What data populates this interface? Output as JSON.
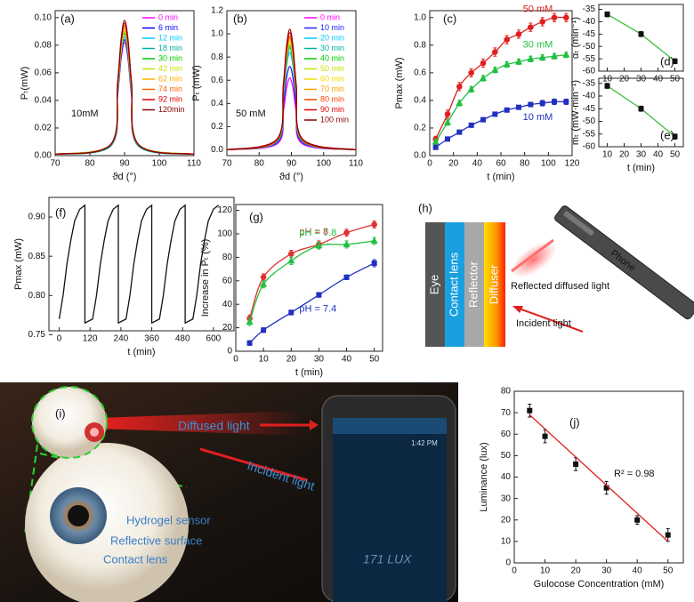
{
  "chart_data": [
    {
      "type": "line",
      "label": "(a)",
      "xlabel": "ϑd (°)",
      "ylabel": "Pₜ(mW)",
      "annotation": "10mM",
      "legend": "upper right",
      "smooth": true,
      "xlim": [
        70,
        110
      ],
      "xticks": [
        70,
        80,
        90,
        100,
        110
      ],
      "ylim": [
        0,
        0.105
      ],
      "yticks": [
        {
          "value": 0,
          "label": "0.00"
        },
        0.02,
        0.04,
        0.06,
        0.08,
        {
          "value": 0.1,
          "label": "0.10"
        }
      ],
      "x": [
        70,
        86,
        88,
        89,
        90,
        91,
        92,
        94,
        110
      ],
      "series": [
        {
          "name": "0 min",
          "color": "#ff00ff",
          "values": [
            0.001,
            0.007,
            0.044,
            0.07,
            0.082,
            0.07,
            0.044,
            0.007,
            0.001
          ]
        },
        {
          "name": "6 min",
          "color": "#0000ff",
          "values": [
            0.001,
            0.007,
            0.045,
            0.072,
            0.084,
            0.072,
            0.045,
            0.007,
            0.001
          ]
        },
        {
          "name": "12 min",
          "color": "#00c8ff",
          "values": [
            0.001,
            0.007,
            0.046,
            0.074,
            0.086,
            0.074,
            0.046,
            0.007,
            0.001
          ]
        },
        {
          "name": "18 min",
          "color": "#00b0a0",
          "values": [
            0.001,
            0.007,
            0.047,
            0.075,
            0.088,
            0.075,
            0.047,
            0.007,
            0.001
          ]
        },
        {
          "name": "30 min",
          "color": "#00cc00",
          "values": [
            0.001,
            0.008,
            0.048,
            0.076,
            0.089,
            0.076,
            0.048,
            0.008,
            0.001
          ]
        },
        {
          "name": "42 min",
          "color": "#c8e000",
          "values": [
            0.001,
            0.008,
            0.049,
            0.077,
            0.09,
            0.077,
            0.049,
            0.008,
            0.001
          ]
        },
        {
          "name": "62 min",
          "color": "#ffb000",
          "values": [
            0.001,
            0.008,
            0.05,
            0.079,
            0.092,
            0.079,
            0.05,
            0.008,
            0.001
          ]
        },
        {
          "name": "74 min",
          "color": "#ff6000",
          "values": [
            0.001,
            0.008,
            0.051,
            0.081,
            0.094,
            0.081,
            0.051,
            0.008,
            0.001
          ]
        },
        {
          "name": "92 min",
          "color": "#e00000",
          "values": [
            0.001,
            0.008,
            0.052,
            0.082,
            0.096,
            0.082,
            0.052,
            0.008,
            0.001
          ]
        },
        {
          "name": "120min",
          "color": "#8b0000",
          "values": [
            0.001,
            0.008,
            0.053,
            0.084,
            0.098,
            0.084,
            0.053,
            0.008,
            0.001
          ]
        }
      ]
    },
    {
      "type": "line",
      "label": "(b)",
      "xlabel": "ϑd (°)",
      "ylabel": "Pₜ (mW)",
      "annotation": "50 mM",
      "legend": "upper right",
      "smooth": true,
      "xlim": [
        70,
        110
      ],
      "xticks": [
        70,
        80,
        90,
        100,
        110
      ],
      "ylim": [
        -0.05,
        1.2
      ],
      "yticks": [
        {
          "value": 0,
          "label": "0.0"
        },
        0.2,
        0.4,
        0.6,
        0.8,
        {
          "value": 1,
          "label": "1.0"
        },
        1.2
      ],
      "x": [
        70,
        85.5,
        87.5,
        88.5,
        89.5,
        90.5,
        91.5,
        93.5,
        110
      ],
      "series": [
        {
          "name": "0 min",
          "color": "#ff00ff",
          "values": [
            0,
            0.05,
            0.33,
            0.53,
            0.62,
            0.53,
            0.33,
            0.05,
            0
          ]
        },
        {
          "name": "10 min",
          "color": "#2020ff",
          "values": [
            0,
            0.06,
            0.39,
            0.62,
            0.72,
            0.62,
            0.39,
            0.06,
            0
          ]
        },
        {
          "name": "20 min",
          "color": "#00c8ff",
          "values": [
            0,
            0.07,
            0.45,
            0.72,
            0.84,
            0.72,
            0.45,
            0.07,
            0
          ]
        },
        {
          "name": "30 min",
          "color": "#00b0a0",
          "values": [
            0,
            0.07,
            0.47,
            0.75,
            0.88,
            0.75,
            0.47,
            0.07,
            0
          ]
        },
        {
          "name": "40 min",
          "color": "#00cc00",
          "values": [
            0,
            0.08,
            0.49,
            0.77,
            0.9,
            0.77,
            0.49,
            0.08,
            0
          ]
        },
        {
          "name": "50 min",
          "color": "#c8e000",
          "values": [
            0,
            0.08,
            0.5,
            0.79,
            0.92,
            0.79,
            0.5,
            0.08,
            0
          ]
        },
        {
          "name": "60 min",
          "color": "#f0e000",
          "values": [
            0,
            0.08,
            0.51,
            0.81,
            0.94,
            0.81,
            0.51,
            0.08,
            0
          ]
        },
        {
          "name": "70 min",
          "color": "#ffa000",
          "values": [
            0,
            0.08,
            0.52,
            0.82,
            0.96,
            0.82,
            0.52,
            0.08,
            0
          ]
        },
        {
          "name": "80 min",
          "color": "#ff4000",
          "values": [
            0,
            0.08,
            0.53,
            0.84,
            0.98,
            0.84,
            0.53,
            0.08,
            0
          ]
        },
        {
          "name": "90 min",
          "color": "#e00000",
          "values": [
            0,
            0.09,
            0.54,
            0.87,
            1.01,
            0.87,
            0.54,
            0.09,
            0
          ]
        },
        {
          "name": "100 min",
          "color": "#8b0000",
          "values": [
            0,
            0.09,
            0.56,
            0.89,
            1.04,
            0.89,
            0.56,
            0.09,
            0
          ]
        }
      ]
    },
    {
      "type": "line",
      "label": "(c)",
      "xlabel": "t (min)",
      "ylabel": "Pmax (mW)",
      "legend": "inline",
      "smooth": true,
      "xlim": [
        0,
        120
      ],
      "xticks": [
        0,
        20,
        40,
        60,
        80,
        100,
        120
      ],
      "ylim": [
        0,
        1.05
      ],
      "yticks": [
        {
          "value": 0,
          "label": "0.0"
        },
        0.2,
        0.4,
        0.6,
        0.8,
        {
          "value": 1,
          "label": "1.0"
        }
      ],
      "x": [
        5,
        15,
        25,
        35,
        45,
        55,
        65,
        75,
        85,
        95,
        105,
        115
      ],
      "series": [
        {
          "name": "50 mM",
          "color": "#e02020",
          "marker": "circle",
          "values": [
            0.12,
            0.3,
            0.5,
            0.6,
            0.67,
            0.75,
            0.84,
            0.88,
            0.93,
            0.97,
            1.0,
            1.0
          ],
          "errors": [
            0.02,
            0.03,
            0.03,
            0.03,
            0.03,
            0.03,
            0.03,
            0.03,
            0.03,
            0.03,
            0.03,
            0.03
          ]
        },
        {
          "name": "30 mM",
          "color": "#20c040",
          "marker": "triangle",
          "values": [
            0.1,
            0.24,
            0.38,
            0.48,
            0.56,
            0.62,
            0.66,
            0.68,
            0.7,
            0.71,
            0.72,
            0.73
          ],
          "errors": [
            0.02,
            0.02,
            0.02,
            0.02,
            0.02,
            0.02,
            0.02,
            0.02,
            0.02,
            0.02,
            0.02,
            0.02
          ]
        },
        {
          "name": "10 mM",
          "color": "#2030c0",
          "marker": "square",
          "values": [
            0.06,
            0.12,
            0.17,
            0.22,
            0.26,
            0.3,
            0.33,
            0.35,
            0.37,
            0.38,
            0.39,
            0.39
          ],
          "errors": [
            0.01,
            0.01,
            0.01,
            0.01,
            0.01,
            0.01,
            0.01,
            0.01,
            0.01,
            0.02,
            0.02,
            0.02
          ]
        }
      ]
    },
    {
      "type": "line",
      "label": "(d)",
      "ylabel": "αₜ (min⁻¹)",
      "xlim": [
        5,
        55
      ],
      "xticks": [
        10,
        20,
        30,
        40,
        50
      ],
      "ylim": [
        -60,
        -33
      ],
      "yticks": [
        -35,
        -40,
        -45,
        -50,
        -55,
        -60
      ],
      "x": [
        10,
        30,
        50
      ],
      "series": [
        {
          "color": "#40c040",
          "marker": "square",
          "marker_color": "#111111",
          "values": [
            -37,
            -45,
            -56
          ],
          "errors": [
            1,
            1,
            1
          ]
        }
      ]
    },
    {
      "type": "line",
      "label": "(e)",
      "xlabel": "t (min)",
      "ylabel": "mₜ (mW·min⁻¹)",
      "xlim": [
        5,
        55
      ],
      "xticks": [
        10,
        20,
        30,
        40,
        50
      ],
      "ylim": [
        -60,
        -33
      ],
      "yticks": [
        -35,
        -40,
        -45,
        -50,
        -55,
        -60
      ],
      "x": [
        10,
        30,
        50
      ],
      "series": [
        {
          "color": "#40c040",
          "marker": "square",
          "marker_color": "#111111",
          "values": [
            -36,
            -45,
            -56
          ],
          "errors": [
            1,
            1,
            1
          ]
        }
      ]
    },
    {
      "type": "line",
      "label": "(f)",
      "xlabel": "t (min)",
      "ylabel": "Pmax (mW)",
      "xlim": [
        -40,
        680
      ],
      "xticks": [
        0,
        120,
        240,
        360,
        480,
        600
      ],
      "ylim": [
        0.755,
        0.925
      ],
      "yticks": [
        0.75,
        {
          "value": 0.8,
          "label": "0.80"
        },
        0.85,
        {
          "value": 0.9,
          "label": "0.90"
        }
      ],
      "x": [
        0,
        15,
        30,
        45,
        60,
        80,
        100,
        100,
        130,
        145,
        160,
        175,
        190,
        210,
        230,
        230,
        260,
        275,
        290,
        305,
        320,
        340,
        360,
        360,
        390,
        405,
        420,
        435,
        450,
        470,
        490,
        490,
        520,
        535,
        550,
        565,
        580,
        600,
        620
      ],
      "series": [
        {
          "color": "#111111",
          "values": [
            0.77,
            0.8,
            0.84,
            0.87,
            0.895,
            0.91,
            0.915,
            0.765,
            0.77,
            0.8,
            0.84,
            0.87,
            0.895,
            0.91,
            0.915,
            0.765,
            0.77,
            0.8,
            0.84,
            0.87,
            0.895,
            0.91,
            0.915,
            0.765,
            0.77,
            0.8,
            0.84,
            0.87,
            0.895,
            0.91,
            0.915,
            0.765,
            0.77,
            0.8,
            0.84,
            0.87,
            0.895,
            0.91,
            0.915
          ]
        }
      ]
    },
    {
      "type": "line",
      "label": "(g)",
      "xlabel": "t (min)",
      "ylabel": "Increase in Pₜ (%)",
      "legend": "inline",
      "smooth": true,
      "xlim": [
        0,
        53
      ],
      "xticks": [
        0,
        10,
        20,
        30,
        40,
        50
      ],
      "ylim": [
        0,
        125
      ],
      "yticks": [
        0,
        20,
        40,
        60,
        80,
        100,
        120
      ],
      "x": [
        5,
        10,
        20,
        30,
        40,
        50
      ],
      "series": [
        {
          "name": "pH = 8",
          "color": "#e03030",
          "marker": "circle",
          "values": [
            28,
            63,
            83,
            91,
            101,
            108
          ],
          "errors": [
            3,
            3,
            3,
            3,
            3,
            3
          ]
        },
        {
          "name": "pH = 7.8",
          "color": "#20c040",
          "marker": "triangle",
          "values": [
            25,
            57,
            77,
            90,
            91,
            94
          ],
          "errors": [
            3,
            3,
            3,
            3,
            3,
            3
          ]
        },
        {
          "name": "pH = 7.4",
          "color": "#2030c0",
          "marker": "square",
          "values": [
            7,
            18,
            33,
            48,
            63,
            75
          ],
          "errors": [
            2,
            2,
            2,
            2,
            2,
            3
          ]
        }
      ]
    },
    {
      "type": "scatter",
      "label": "(j)",
      "xlabel": "Gulocose Concentration (mM)",
      "ylabel": "Luminance (lux)",
      "annotation": "R² = 0.98",
      "xlim": [
        0,
        55
      ],
      "xticks": [
        0,
        10,
        20,
        30,
        40,
        50
      ],
      "ylim": [
        0,
        80
      ],
      "yticks": [
        0,
        10,
        20,
        30,
        40,
        50,
        60,
        70,
        80
      ],
      "x": [
        5,
        10,
        20,
        30,
        40,
        50
      ],
      "series": [
        {
          "color": "#111111",
          "marker": "square",
          "values": [
            71,
            59,
            46,
            35,
            20,
            13
          ],
          "errors": [
            3,
            3,
            3,
            3,
            2,
            3
          ]
        }
      ],
      "fit": {
        "color": "#e02020",
        "x": [
          5,
          50
        ],
        "values": [
          69,
          10
        ]
      }
    }
  ],
  "diagram": {
    "label": "(h)",
    "layers": [
      "Eye",
      "Contact lens",
      "Reflector",
      "Diffuser"
    ],
    "device": "Phone",
    "reflected": "Reflected diffused light",
    "incident": "Incident light"
  },
  "photo": {
    "label": "(i)",
    "diffused": "Diffused light",
    "incident": "Incident light",
    "parts": [
      "Hydrogel sensor",
      "Reflective surface",
      "Contact lens"
    ],
    "screen_time": "1:42 PM",
    "screen_reading": "171 LUX"
  }
}
